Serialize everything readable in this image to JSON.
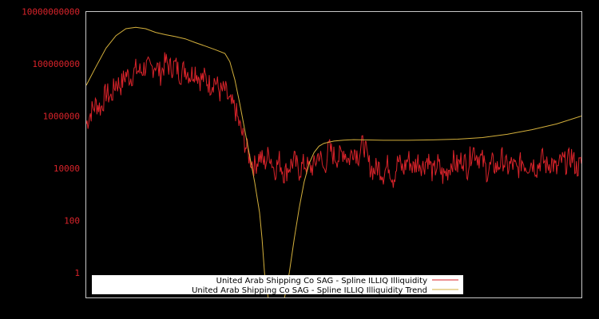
{
  "chart_data": {
    "type": "line",
    "title": "",
    "xlabel": "",
    "ylabel": "",
    "yscale": "log",
    "ylim": [
      0.11,
      10700000000
    ],
    "grid": false,
    "legend_position": "bottom-left inside plot",
    "y_ticks": [
      {
        "value": 10000000000,
        "label": "10000000000"
      },
      {
        "value": 100000000,
        "label": "100000000"
      },
      {
        "value": 1000000,
        "label": "1000000"
      },
      {
        "value": 10000,
        "label": "10000"
      },
      {
        "value": 100,
        "label": "100"
      },
      {
        "value": 1,
        "label": "1"
      }
    ],
    "x_ticks": [],
    "x_note": "x positions are normalized 0..1 across plot width (no x tick labels shown)",
    "series": [
      {
        "name": "United Arab Shipping Co SAG - Spline ILLIQ Illiquidity",
        "color": "#d8232a",
        "x": [
          0.0,
          0.01,
          0.02,
          0.03,
          0.04,
          0.05,
          0.06,
          0.07,
          0.08,
          0.09,
          0.1,
          0.11,
          0.12,
          0.13,
          0.14,
          0.15,
          0.16,
          0.17,
          0.18,
          0.19,
          0.2,
          0.21,
          0.22,
          0.23,
          0.24,
          0.25,
          0.26,
          0.27,
          0.28,
          0.29,
          0.3,
          0.31,
          0.32,
          0.33,
          0.34,
          0.35,
          0.36,
          0.37,
          0.38,
          0.39,
          0.4,
          0.41,
          0.42,
          0.43,
          0.44,
          0.45,
          0.46,
          0.47,
          0.48,
          0.49,
          0.5,
          0.51,
          0.52,
          0.53,
          0.54,
          0.55,
          0.56,
          0.57,
          0.58,
          0.59,
          0.6,
          0.61,
          0.62,
          0.63,
          0.64,
          0.65,
          0.66,
          0.67,
          0.68,
          0.69,
          0.7,
          0.71,
          0.72,
          0.73,
          0.74,
          0.75,
          0.76,
          0.77,
          0.78,
          0.79,
          0.8,
          0.81,
          0.82,
          0.83,
          0.84,
          0.85,
          0.86,
          0.87,
          0.88,
          0.89,
          0.9,
          0.91,
          0.92,
          0.93,
          0.94,
          0.95,
          0.96,
          0.97,
          0.98,
          0.99,
          1.0
        ],
        "values": [
          500000,
          1500000,
          3000000,
          2000000,
          8000000,
          5000000,
          20000000,
          15000000,
          40000000,
          30000000,
          60000000,
          50000000,
          80000000,
          60000000,
          100000000,
          40000000,
          120000000,
          70000000,
          90000000,
          40000000,
          70000000,
          35000000,
          60000000,
          25000000,
          30000000,
          15000000,
          25000000,
          8000000,
          10000000,
          3000000,
          2000000,
          400000,
          100000,
          25000,
          12000,
          30000,
          15000,
          40000,
          8000,
          20000,
          6000,
          12000,
          20000,
          8000,
          15000,
          10000,
          12000,
          40000,
          8000,
          60000,
          30000,
          25000,
          50000,
          20000,
          60000,
          30000,
          100000,
          15000,
          8000,
          12000,
          6000,
          15000,
          4000,
          20000,
          8000,
          25000,
          10000,
          20000,
          12000,
          25000,
          6000,
          15000,
          5000,
          8000,
          20000,
          12000,
          25000,
          10000,
          60000,
          30000,
          20000,
          7000,
          15000,
          10000,
          25000,
          10000,
          15000,
          8000,
          20000,
          12000,
          18000,
          10000,
          25000,
          12000,
          18000,
          8000,
          20000,
          15000,
          30000,
          10000,
          15000
        ],
        "line_width": 1
      },
      {
        "name": "United Arab Shipping Co SAG - Spline ILLIQ Illiquidity Trend",
        "color": "#d4b03c",
        "x": [
          0.0,
          0.02,
          0.04,
          0.06,
          0.08,
          0.1,
          0.12,
          0.14,
          0.16,
          0.18,
          0.2,
          0.22,
          0.24,
          0.26,
          0.28,
          0.29,
          0.3,
          0.31,
          0.32,
          0.33,
          0.34,
          0.35,
          0.355,
          0.36,
          0.37,
          0.38,
          0.39,
          0.4,
          0.41,
          0.42,
          0.43,
          0.44,
          0.45,
          0.46,
          0.47,
          0.48,
          0.5,
          0.52,
          0.54,
          0.56,
          0.6,
          0.65,
          0.7,
          0.75,
          0.8,
          0.85,
          0.9,
          0.95,
          1.0
        ],
        "values": [
          15000000,
          80000000,
          400000000,
          1200000000,
          2200000000,
          2500000000,
          2200000000,
          1600000000,
          1300000000,
          1100000000,
          900000000,
          650000000,
          480000000,
          350000000,
          250000000,
          120000000,
          25000000,
          3000000,
          300000,
          30000,
          3000,
          200,
          20,
          1,
          0.05,
          0.02,
          0.03,
          0.1,
          1,
          20,
          300,
          3000,
          15000,
          40000,
          70000,
          90000,
          110000,
          120000,
          125000,
          122000,
          118000,
          118000,
          122000,
          130000,
          150000,
          200000,
          300000,
          500000,
          1000000
        ],
        "line_width": 1
      }
    ]
  },
  "legend": {
    "items": [
      {
        "label": "United Arab Shipping Co SAG - Spline ILLIQ Illiquidity",
        "color": "#d8232a"
      },
      {
        "label": "United Arab Shipping Co SAG - Spline ILLIQ Illiquidity Trend",
        "color": "#d4b03c"
      }
    ]
  },
  "colors": {
    "background": "#000000",
    "axis": "#c8c8c8",
    "tick_label": "#d8232a",
    "legend_bg": "#ffffff"
  }
}
